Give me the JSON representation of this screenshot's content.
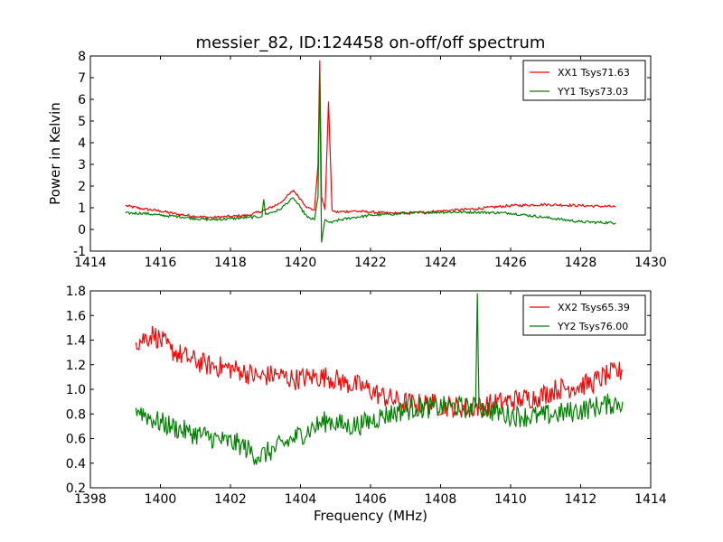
{
  "title": "messier_82, ID:124458 on-off/off spectrum",
  "colors": {
    "xx": "#ff0000",
    "yy": "#008000",
    "axes": "#000000",
    "background": "#ffffff"
  },
  "chart_data": [
    {
      "type": "line",
      "title": "messier_82, ID:124458 on-off/off spectrum",
      "xlabel": "",
      "ylabel": "Power in Kelvin",
      "xlim": [
        1414,
        1430
      ],
      "ylim": [
        -1,
        8
      ],
      "xticks": [
        1414,
        1416,
        1418,
        1420,
        1422,
        1424,
        1426,
        1428,
        1430
      ],
      "yticks": [
        -1,
        0,
        1,
        2,
        3,
        4,
        5,
        6,
        7,
        8
      ],
      "grid": false,
      "legend_position": "top-right",
      "series": [
        {
          "name": "XX1 Tsys71.63",
          "color": "#ff0000",
          "x": [
            1415.0,
            1415.5,
            1416.0,
            1416.5,
            1417.0,
            1417.5,
            1418.0,
            1418.5,
            1419.0,
            1419.4,
            1419.6,
            1419.8,
            1420.0,
            1420.2,
            1420.4,
            1420.5,
            1420.55,
            1420.6,
            1420.7,
            1420.8,
            1420.9,
            1421.0,
            1421.5,
            1422.0,
            1422.5,
            1423.0,
            1424.0,
            1425.0,
            1426.0,
            1427.0,
            1428.0,
            1429.0
          ],
          "y": [
            1.1,
            0.95,
            0.85,
            0.7,
            0.6,
            0.55,
            0.6,
            0.65,
            0.9,
            1.2,
            1.5,
            1.8,
            1.4,
            1.0,
            0.9,
            3.0,
            7.8,
            1.5,
            0.9,
            5.9,
            0.9,
            0.8,
            0.85,
            0.8,
            0.75,
            0.75,
            0.85,
            0.95,
            1.1,
            1.15,
            1.1,
            1.05
          ]
        },
        {
          "name": "YY1 Tsys73.03",
          "color": "#008000",
          "x": [
            1415.0,
            1415.5,
            1416.0,
            1416.5,
            1417.0,
            1417.5,
            1418.0,
            1418.5,
            1418.9,
            1418.95,
            1419.0,
            1419.4,
            1419.6,
            1419.8,
            1420.0,
            1420.2,
            1420.4,
            1420.5,
            1420.55,
            1420.6,
            1420.7,
            1420.8,
            1420.9,
            1421.0,
            1421.5,
            1422.0,
            1422.5,
            1423.0,
            1424.0,
            1425.0,
            1426.0,
            1427.0,
            1428.0,
            1429.0
          ],
          "y": [
            0.75,
            0.75,
            0.65,
            0.6,
            0.5,
            0.45,
            0.5,
            0.55,
            0.6,
            1.4,
            0.7,
            0.9,
            1.2,
            1.45,
            1.0,
            0.55,
            0.45,
            1.5,
            7.3,
            -0.6,
            0.45,
            0.35,
            0.3,
            0.4,
            0.55,
            0.65,
            0.7,
            0.75,
            0.8,
            0.8,
            0.75,
            0.55,
            0.35,
            0.3
          ]
        }
      ]
    },
    {
      "type": "line",
      "title": "",
      "xlabel": "Frequency (MHz)",
      "ylabel": "",
      "xlim": [
        1398,
        1414
      ],
      "ylim": [
        0.2,
        1.8
      ],
      "xticks": [
        1398,
        1400,
        1402,
        1404,
        1406,
        1408,
        1410,
        1412,
        1414
      ],
      "yticks": [
        0.2,
        0.4,
        0.6,
        0.8,
        1.0,
        1.2,
        1.4,
        1.6,
        1.8
      ],
      "grid": false,
      "legend_position": "top-right",
      "series": [
        {
          "name": "XX2 Tsys65.39",
          "color": "#ff0000",
          "x": [
            1399.3,
            1399.8,
            1400.3,
            1400.8,
            1401.3,
            1401.8,
            1402.3,
            1402.8,
            1403.3,
            1403.8,
            1404.3,
            1404.8,
            1405.3,
            1405.8,
            1406.3,
            1406.8,
            1407.3,
            1407.8,
            1408.3,
            1408.8,
            1409.3,
            1409.8,
            1410.3,
            1410.8,
            1411.3,
            1411.8,
            1412.3,
            1412.8,
            1413.2
          ],
          "y": [
            1.38,
            1.45,
            1.32,
            1.25,
            1.2,
            1.18,
            1.15,
            1.1,
            1.12,
            1.08,
            1.1,
            1.1,
            1.05,
            1.02,
            0.95,
            0.9,
            0.88,
            0.88,
            0.86,
            0.85,
            0.87,
            0.9,
            0.92,
            0.94,
            1.0,
            1.02,
            1.05,
            1.12,
            1.15
          ]
        },
        {
          "name": "YY2 Tsys76.00",
          "color": "#008000",
          "x": [
            1399.3,
            1399.8,
            1400.3,
            1400.8,
            1401.3,
            1401.8,
            1402.3,
            1402.8,
            1403.3,
            1403.8,
            1404.3,
            1404.8,
            1405.3,
            1405.8,
            1406.3,
            1406.8,
            1407.3,
            1407.8,
            1408.3,
            1408.8,
            1409.0,
            1409.05,
            1409.1,
            1409.3,
            1409.8,
            1410.3,
            1410.8,
            1411.3,
            1411.8,
            1412.3,
            1412.8,
            1413.2
          ],
          "y": [
            0.85,
            0.75,
            0.7,
            0.65,
            0.62,
            0.58,
            0.55,
            0.45,
            0.52,
            0.6,
            0.68,
            0.75,
            0.7,
            0.72,
            0.78,
            0.82,
            0.85,
            0.85,
            0.86,
            0.85,
            0.85,
            1.78,
            0.85,
            0.84,
            0.8,
            0.78,
            0.78,
            0.8,
            0.82,
            0.85,
            0.88,
            0.9
          ]
        }
      ]
    }
  ]
}
